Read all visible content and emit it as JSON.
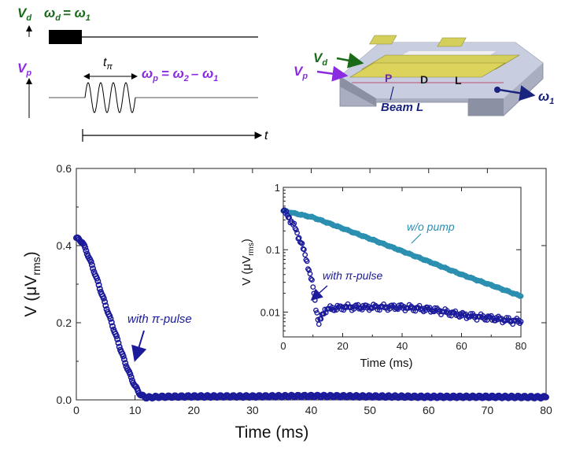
{
  "schematic": {
    "vd_label": "V",
    "vd_sub": "d",
    "vd_eq_omega": "ω",
    "vd_eq_sub": "d",
    "vd_eq_rhs": "= ω",
    "vd_eq_rhs_sub": "1",
    "vp_label": "V",
    "vp_sub": "p",
    "tpi_label": "t",
    "tpi_sub": "π",
    "wp_omega": "ω",
    "wp_sub": "p",
    "wp_rhs1": "= ω",
    "wp_rhs1_sub": "2",
    "wp_rhs2": "– ω",
    "wp_rhs2_sub": "1",
    "t_label": "t",
    "colors": {
      "vd": "#1a6a1a",
      "vp": "#8a2be2",
      "signal": "#000000"
    }
  },
  "device": {
    "vd_label": "V",
    "vd_sub": "d",
    "vp_label": "V",
    "vp_sub": "p",
    "p_label": "P",
    "d_label": "D",
    "l_label": "L",
    "beam_label": "Beam L",
    "omega_label": "ω",
    "omega_sub": "1",
    "colors": {
      "base": "#9aa0b0",
      "gold": "#c8c23a",
      "arrow_vd": "#1a6a1a",
      "arrow_vp": "#8a2be2",
      "arrow_w": "#1a237e",
      "beam": "#1a237e"
    }
  },
  "chart_data": [
    {
      "type": "scatter",
      "xlabel": "Time (ms)",
      "ylabel_main": "V (",
      "ylabel_mu": "μ",
      "ylabel_v": "V",
      "ylabel_sub": "rms",
      "ylabel_close": ")",
      "xlim": [
        0,
        80
      ],
      "ylim": [
        0,
        0.6
      ],
      "xticks": [
        "0",
        "10",
        "20",
        "30",
        "40",
        "50",
        "60",
        "70",
        "80"
      ],
      "yticks": [
        "0.0",
        "0.2",
        "0.4",
        "0.6"
      ],
      "annotation": "with π-pulse",
      "series": [
        {
          "color": "#1a1a9a",
          "points": [
            [
              0,
              0.42
            ],
            [
              1,
              0.41
            ],
            [
              2,
              0.375
            ],
            [
              3,
              0.335
            ],
            [
              4,
              0.29
            ],
            [
              5,
              0.245
            ],
            [
              6,
              0.2
            ],
            [
              7,
              0.155
            ],
            [
              8,
              0.11
            ],
            [
              9,
              0.07
            ],
            [
              10,
              0.035
            ],
            [
              11,
              0.012
            ],
            [
              12,
              0.006
            ],
            [
              14,
              0.008
            ],
            [
              20,
              0.009
            ],
            [
              30,
              0.009
            ],
            [
              40,
              0.01
            ],
            [
              50,
              0.009
            ],
            [
              60,
              0.008
            ],
            [
              70,
              0.008
            ],
            [
              80,
              0.007
            ]
          ]
        }
      ]
    },
    {
      "type": "scatter",
      "xlabel": "Time (ms)",
      "ylabel_main": "V (",
      "ylabel_mu": "μ",
      "ylabel_v": "V",
      "ylabel_sub": "rms",
      "ylabel_close": ")",
      "yscale": "log",
      "xlim": [
        0,
        80
      ],
      "ylim": [
        0.004,
        1
      ],
      "xticks": [
        "0",
        "20",
        "40",
        "60",
        "80"
      ],
      "yticks": [
        "0.01",
        "0.1",
        "1"
      ],
      "annotations": [
        "w/o pump",
        "with π-pulse"
      ],
      "series": [
        {
          "color": "#2b8fb0",
          "points": [
            [
              0,
              0.42
            ],
            [
              10,
              0.33
            ],
            [
              20,
              0.22
            ],
            [
              30,
              0.145
            ],
            [
              40,
              0.095
            ],
            [
              50,
              0.062
            ],
            [
              60,
              0.04
            ],
            [
              70,
              0.027
            ],
            [
              80,
              0.018
            ]
          ]
        },
        {
          "color": "#1a1a9a",
          "points": [
            [
              0,
              0.42
            ],
            [
              2,
              0.33
            ],
            [
              4,
              0.22
            ],
            [
              6,
              0.13
            ],
            [
              8,
              0.065
            ],
            [
              10,
              0.025
            ],
            [
              11,
              0.012
            ],
            [
              12,
              0.0065
            ],
            [
              14,
              0.011
            ],
            [
              20,
              0.012
            ],
            [
              30,
              0.012
            ],
            [
              40,
              0.012
            ],
            [
              50,
              0.011
            ],
            [
              60,
              0.009
            ],
            [
              70,
              0.008
            ],
            [
              80,
              0.007
            ]
          ]
        }
      ]
    }
  ]
}
